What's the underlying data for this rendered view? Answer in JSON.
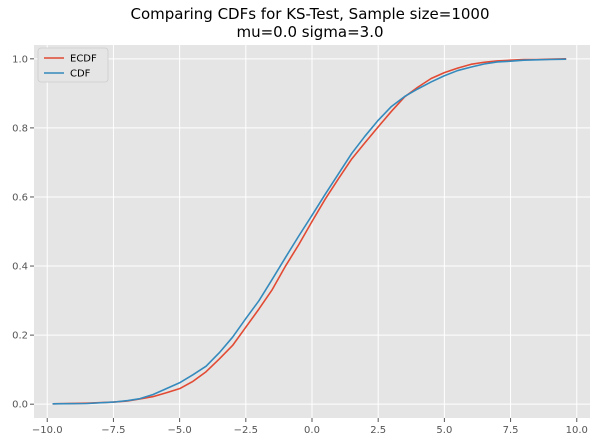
{
  "chart_data": {
    "type": "line",
    "title": "Comparing CDFs for KS-Test, Sample size=1000",
    "subtitle": "mu=0.0 sigma=3.0",
    "xlabel": "",
    "ylabel": "",
    "xlim": [
      -10.5,
      10.5
    ],
    "ylim": [
      -0.04,
      1.04
    ],
    "x_ticks": [
      -10.0,
      -7.5,
      -5.0,
      -2.5,
      0.0,
      2.5,
      5.0,
      7.5,
      10.0
    ],
    "x_tick_labels": [
      "−10.0",
      "−7.5",
      "−5.0",
      "−2.5",
      "0.0",
      "2.5",
      "5.0",
      "7.5",
      "10.0"
    ],
    "y_ticks": [
      0.0,
      0.2,
      0.4,
      0.6,
      0.8,
      1.0
    ],
    "y_tick_labels": [
      "0.0",
      "0.2",
      "0.4",
      "0.6",
      "0.8",
      "1.0"
    ],
    "grid": true,
    "legend_position": "top-left",
    "series": [
      {
        "name": "ECDF",
        "color": "#E24A33",
        "x": [
          -9.8,
          -8.5,
          -7.5,
          -7.0,
          -6.5,
          -6.0,
          -5.5,
          -5.0,
          -4.5,
          -4.0,
          -3.5,
          -3.0,
          -2.5,
          -2.0,
          -1.5,
          -1.0,
          -0.5,
          0.0,
          0.5,
          1.0,
          1.5,
          2.0,
          2.5,
          3.0,
          3.5,
          4.0,
          4.5,
          5.0,
          5.5,
          6.0,
          6.5,
          7.0,
          7.5,
          8.0,
          8.5,
          9.0,
          9.6
        ],
        "y": [
          0.001,
          0.003,
          0.006,
          0.009,
          0.015,
          0.022,
          0.033,
          0.045,
          0.066,
          0.094,
          0.131,
          0.17,
          0.223,
          0.276,
          0.332,
          0.4,
          0.462,
          0.529,
          0.594,
          0.653,
          0.71,
          0.757,
          0.803,
          0.848,
          0.89,
          0.918,
          0.943,
          0.96,
          0.973,
          0.984,
          0.99,
          0.994,
          0.996,
          0.998,
          0.998,
          0.999,
          1.0
        ]
      },
      {
        "name": "CDF",
        "color": "#348ABD",
        "x": [
          -9.8,
          -8.5,
          -7.5,
          -7.0,
          -6.5,
          -6.0,
          -5.5,
          -5.0,
          -4.5,
          -4.0,
          -3.5,
          -3.0,
          -2.5,
          -2.0,
          -1.5,
          -1.0,
          -0.5,
          0.0,
          0.5,
          1.0,
          1.5,
          2.0,
          2.5,
          3.0,
          3.5,
          4.0,
          4.5,
          5.0,
          5.5,
          6.0,
          6.5,
          7.0,
          7.5,
          8.0,
          8.5,
          9.0,
          9.6
        ],
        "y": [
          0.001,
          0.002,
          0.006,
          0.01,
          0.016,
          0.028,
          0.045,
          0.062,
          0.085,
          0.11,
          0.149,
          0.194,
          0.248,
          0.3,
          0.362,
          0.425,
          0.487,
          0.547,
          0.608,
          0.667,
          0.726,
          0.776,
          0.822,
          0.862,
          0.891,
          0.913,
          0.933,
          0.951,
          0.966,
          0.976,
          0.985,
          0.991,
          0.993,
          0.996,
          0.997,
          0.998,
          0.999
        ]
      }
    ]
  }
}
